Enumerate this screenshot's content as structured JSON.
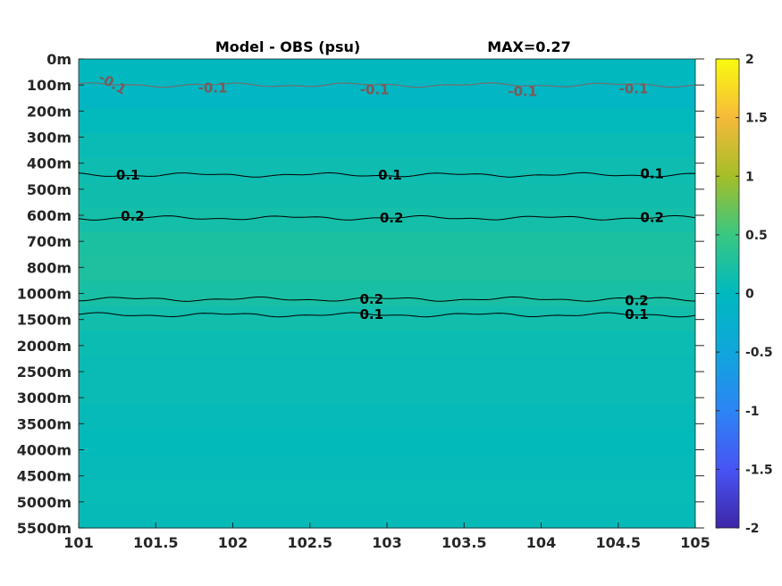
{
  "chart_data": {
    "type": "heatmap",
    "title": "Model - OBS (psu)",
    "subtitle": "MAX=0.27",
    "x_ticks": [
      "101",
      "101.5",
      "102",
      "102.5",
      "103",
      "103.5",
      "104",
      "104.5",
      "105"
    ],
    "y_ticks": [
      "0m",
      "100m",
      "200m",
      "300m",
      "400m",
      "500m",
      "600m",
      "700m",
      "800m",
      "1000m",
      "1500m",
      "2000m",
      "2500m",
      "3000m",
      "3500m",
      "4000m",
      "4500m",
      "5000m",
      "5500m"
    ],
    "xlim": [
      101,
      105
    ],
    "colorbar": {
      "range": [
        -2,
        2
      ],
      "ticks": [
        "2",
        "1.5",
        "1",
        "0.5",
        "0",
        "-0.5",
        "-1",
        "-1.5",
        "-2"
      ],
      "colormap": "parula"
    },
    "depth_levels": [
      "0m",
      "100m",
      "200m",
      "300m",
      "400m",
      "500m",
      "600m",
      "700m",
      "800m",
      "1000m",
      "1500m",
      "2000m",
      "2500m",
      "3000m",
      "3500m",
      "4000m",
      "4500m",
      "5000m",
      "5500m"
    ],
    "field_values": [
      -0.02,
      -0.08,
      0.02,
      0.08,
      0.12,
      0.14,
      0.18,
      0.24,
      0.26,
      0.22,
      0.16,
      0.1,
      0.08,
      0.08,
      0.04,
      0.03,
      0.04,
      0.06,
      0.05
    ],
    "contour_labels": [
      {
        "text": "-0.1",
        "x": 101.22,
        "depth_index": 0.95,
        "rotate": 30
      },
      {
        "text": "-0.1",
        "x": 101.87,
        "depth_index": 1.12,
        "rotate": 0
      },
      {
        "text": "-0.1",
        "x": 102.92,
        "depth_index": 1.18,
        "rotate": 0
      },
      {
        "text": "-0.1",
        "x": 103.88,
        "depth_index": 1.25,
        "rotate": 0
      },
      {
        "text": "-0.1",
        "x": 104.6,
        "depth_index": 1.15,
        "rotate": 0
      },
      {
        "text": "0.1",
        "x": 101.32,
        "depth_index": 4.45,
        "rotate": 0
      },
      {
        "text": "0.1",
        "x": 103.02,
        "depth_index": 4.45,
        "rotate": 0
      },
      {
        "text": "0.1",
        "x": 104.72,
        "depth_index": 4.4,
        "rotate": 0
      },
      {
        "text": "0.2",
        "x": 101.35,
        "depth_index": 6.03,
        "rotate": 0
      },
      {
        "text": "0.2",
        "x": 103.03,
        "depth_index": 6.1,
        "rotate": 0
      },
      {
        "text": "0.2",
        "x": 104.72,
        "depth_index": 6.08,
        "rotate": 0
      },
      {
        "text": "0.2",
        "x": 102.9,
        "depth_index": 9.23,
        "rotate": 0
      },
      {
        "text": "0.2",
        "x": 104.62,
        "depth_index": 9.27,
        "rotate": 0
      },
      {
        "text": "0.1",
        "x": 102.9,
        "depth_index": 9.8,
        "rotate": 0
      },
      {
        "text": "0.1",
        "x": 104.62,
        "depth_index": 9.8,
        "rotate": 0
      }
    ],
    "contour_lines": [
      {
        "level": -0.1,
        "color": "#6f6f6f",
        "depth_index": 1.0
      },
      {
        "level": 0.1,
        "color": "#000000",
        "depth_index": 4.45
      },
      {
        "level": 0.2,
        "color": "#000000",
        "depth_index": 6.1
      },
      {
        "level": 0.2,
        "color": "#000000",
        "depth_index": 9.22
      },
      {
        "level": 0.1,
        "color": "#000000",
        "depth_index": 9.82
      }
    ],
    "grid": false
  }
}
